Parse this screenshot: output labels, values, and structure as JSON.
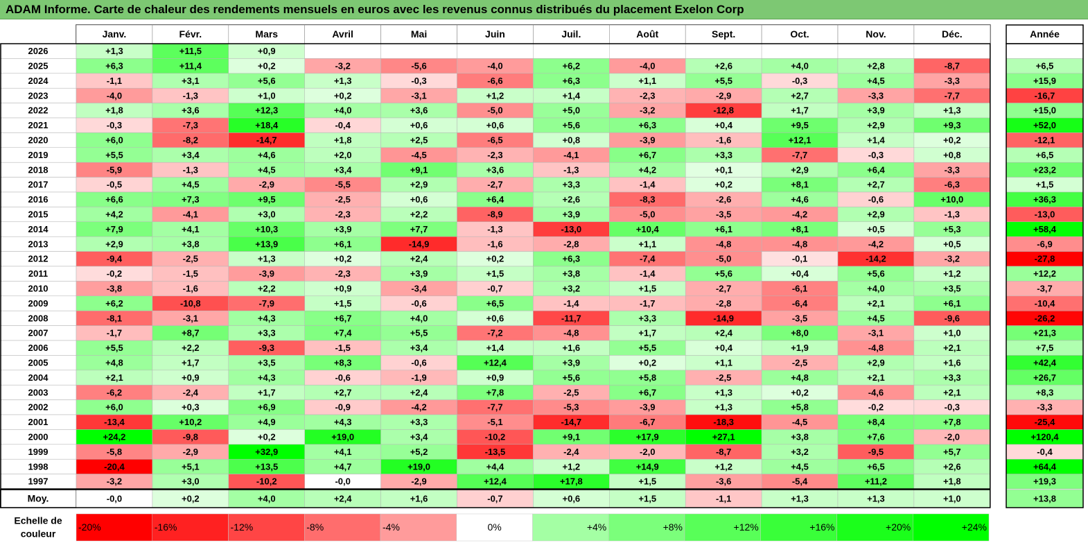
{
  "title": "ADAM Informe. Carte de chaleur des rendements mensuels en euros avec les revenus connus distribués du placement Exelon Corp",
  "chart_data": {
    "type": "heatmap",
    "title": "ADAM Informe. Carte de chaleur des rendements mensuels en euros avec les revenus connus distribués du placement Exelon Corp",
    "columns": [
      "Janv.",
      "Févr.",
      "Mars",
      "Avril",
      "Mai",
      "Juin",
      "Juil.",
      "Août",
      "Sept.",
      "Oct.",
      "Nov.",
      "Déc."
    ],
    "annual_label": "Année",
    "rows": [
      {
        "year": "2026",
        "months": [
          "+1,3",
          "+11,5",
          "+0,9",
          null,
          null,
          null,
          null,
          null,
          null,
          null,
          null,
          null
        ],
        "annual": null
      },
      {
        "year": "2025",
        "months": [
          "+6,3",
          "+11,4",
          "+0,2",
          "-3,2",
          "-5,6",
          "-4,0",
          "+6,2",
          "-4,0",
          "+2,6",
          "+4,0",
          "+2,8",
          "-8,7"
        ],
        "annual": "+6,5"
      },
      {
        "year": "2024",
        "months": [
          "-1,1",
          "+3,1",
          "+5,6",
          "+1,3",
          "-0,3",
          "-6,6",
          "+6,3",
          "+1,1",
          "+5,5",
          "-0,3",
          "+4,5",
          "-3,3"
        ],
        "annual": "+15,9"
      },
      {
        "year": "2023",
        "months": [
          "-4,0",
          "-1,3",
          "+1,0",
          "+0,2",
          "-3,1",
          "+1,2",
          "+1,4",
          "-2,3",
          "-2,9",
          "+2,7",
          "-3,3",
          "-7,7"
        ],
        "annual": "-16,7"
      },
      {
        "year": "2022",
        "months": [
          "+1,8",
          "+3,6",
          "+12,3",
          "+4,0",
          "+3,6",
          "-5,0",
          "+5,0",
          "-3,2",
          "-12,8",
          "+1,7",
          "+3,9",
          "+1,3"
        ],
        "annual": "+15,0"
      },
      {
        "year": "2021",
        "months": [
          "-0,3",
          "-7,3",
          "+18,4",
          "-0,4",
          "+0,6",
          "+0,6",
          "+5,6",
          "+6,3",
          "+0,4",
          "+9,5",
          "+2,9",
          "+9,3"
        ],
        "annual": "+52,0"
      },
      {
        "year": "2020",
        "months": [
          "+6,0",
          "-8,2",
          "-14,7",
          "+1,8",
          "+2,5",
          "-6,5",
          "+0,8",
          "-3,9",
          "-1,6",
          "+12,1",
          "+1,4",
          "+0,2"
        ],
        "annual": "-12,1"
      },
      {
        "year": "2019",
        "months": [
          "+5,5",
          "+3,4",
          "+4,6",
          "+2,0",
          "-4,5",
          "-2,3",
          "-4,1",
          "+6,7",
          "+3,3",
          "-7,7",
          "-0,3",
          "+0,8"
        ],
        "annual": "+6,5"
      },
      {
        "year": "2018",
        "months": [
          "-5,9",
          "-1,3",
          "+4,5",
          "+3,4",
          "+9,1",
          "+3,6",
          "-1,3",
          "+4,2",
          "+0,1",
          "+2,9",
          "+6,4",
          "-3,3"
        ],
        "annual": "+23,2"
      },
      {
        "year": "2017",
        "months": [
          "-0,5",
          "+4,5",
          "-2,9",
          "-5,5",
          "+2,9",
          "-2,7",
          "+3,3",
          "-1,4",
          "+0,2",
          "+8,1",
          "+2,7",
          "-6,3"
        ],
        "annual": "+1,5"
      },
      {
        "year": "2016",
        "months": [
          "+6,6",
          "+7,3",
          "+9,5",
          "-2,5",
          "+0,6",
          "+6,4",
          "+2,6",
          "-8,3",
          "-2,6",
          "+4,6",
          "-0,6",
          "+10,0"
        ],
        "annual": "+36,3"
      },
      {
        "year": "2015",
        "months": [
          "+4,2",
          "-4,1",
          "+3,0",
          "-2,3",
          "+2,2",
          "-8,9",
          "+3,9",
          "-5,0",
          "-3,5",
          "-4,2",
          "+2,9",
          "-1,3"
        ],
        "annual": "-13,0"
      },
      {
        "year": "2014",
        "months": [
          "+7,9",
          "+4,1",
          "+10,3",
          "+3,9",
          "+7,7",
          "-1,3",
          "-13,0",
          "+10,4",
          "+6,1",
          "+8,1",
          "+0,5",
          "+5,3"
        ],
        "annual": "+58,4"
      },
      {
        "year": "2013",
        "months": [
          "+2,9",
          "+3,8",
          "+13,9",
          "+6,1",
          "-14,9",
          "-1,6",
          "-2,8",
          "+1,1",
          "-4,8",
          "-4,8",
          "-4,2",
          "+0,5"
        ],
        "annual": "-6,9"
      },
      {
        "year": "2012",
        "months": [
          "-9,4",
          "-2,5",
          "+1,3",
          "+0,2",
          "+2,4",
          "+0,2",
          "+6,3",
          "-7,4",
          "-5,0",
          "-0,1",
          "-14,2",
          "-3,2"
        ],
        "annual": "-27,8"
      },
      {
        "year": "2011",
        "months": [
          "-0,2",
          "-1,5",
          "-3,9",
          "-2,3",
          "+3,9",
          "+1,5",
          "+3,8",
          "-1,4",
          "+5,6",
          "+0,4",
          "+5,6",
          "+1,2"
        ],
        "annual": "+12,2"
      },
      {
        "year": "2010",
        "months": [
          "-3,8",
          "-1,6",
          "+2,2",
          "+0,9",
          "-3,4",
          "-0,7",
          "+3,2",
          "+1,5",
          "-2,7",
          "-6,1",
          "+4,0",
          "+3,5"
        ],
        "annual": "-3,7"
      },
      {
        "year": "2009",
        "months": [
          "+6,2",
          "-10,8",
          "-7,9",
          "+1,5",
          "-0,6",
          "+6,5",
          "-1,4",
          "-1,7",
          "-2,8",
          "-6,4",
          "+2,1",
          "+6,1"
        ],
        "annual": "-10,4"
      },
      {
        "year": "2008",
        "months": [
          "-8,1",
          "-3,1",
          "+4,3",
          "+6,7",
          "+4,0",
          "+0,6",
          "-11,7",
          "+3,3",
          "-14,9",
          "-3,5",
          "+4,5",
          "-9,6"
        ],
        "annual": "-26,2"
      },
      {
        "year": "2007",
        "months": [
          "-1,7",
          "+8,7",
          "+3,3",
          "+7,4",
          "+5,5",
          "-7,2",
          "-4,8",
          "+1,7",
          "+2,4",
          "+8,0",
          "-3,1",
          "+1,0"
        ],
        "annual": "+21,3"
      },
      {
        "year": "2006",
        "months": [
          "+5,5",
          "+2,2",
          "-9,3",
          "-1,5",
          "+3,4",
          "+1,4",
          "+1,6",
          "+5,5",
          "+0,4",
          "+1,9",
          "-4,8",
          "+2,1"
        ],
        "annual": "+7,5"
      },
      {
        "year": "2005",
        "months": [
          "+4,8",
          "+1,7",
          "+3,5",
          "+8,3",
          "-0,6",
          "+12,4",
          "+3,9",
          "+0,2",
          "+1,1",
          "-2,5",
          "+2,9",
          "+1,6"
        ],
        "annual": "+42,4"
      },
      {
        "year": "2004",
        "months": [
          "+2,1",
          "+0,9",
          "+4,3",
          "-0,6",
          "-1,9",
          "+0,9",
          "+5,6",
          "+5,8",
          "-2,5",
          "+4,8",
          "+2,1",
          "+3,3"
        ],
        "annual": "+26,7"
      },
      {
        "year": "2003",
        "months": [
          "-6,2",
          "-2,4",
          "+1,7",
          "+2,7",
          "+2,4",
          "+7,8",
          "-2,5",
          "+6,7",
          "+1,3",
          "+0,2",
          "-4,6",
          "+2,1"
        ],
        "annual": "+8,3"
      },
      {
        "year": "2002",
        "months": [
          "+6,0",
          "+0,3",
          "+6,9",
          "-0,9",
          "-4,2",
          "-7,7",
          "-5,3",
          "-3,9",
          "+1,3",
          "+5,8",
          "-0,2",
          "-0,3"
        ],
        "annual": "-3,3"
      },
      {
        "year": "2001",
        "months": [
          "-13,4",
          "+10,2",
          "+4,9",
          "+4,3",
          "+3,3",
          "-5,1",
          "-14,7",
          "-6,7",
          "-18,3",
          "-4,5",
          "+8,4",
          "+7,8"
        ],
        "annual": "-25,4"
      },
      {
        "year": "2000",
        "months": [
          "+24,2",
          "-9,8",
          "+0,2",
          "+19,0",
          "+3,4",
          "-10,2",
          "+9,1",
          "+17,9",
          "+27,1",
          "+3,8",
          "+7,6",
          "-2,0"
        ],
        "annual": "+120,4"
      },
      {
        "year": "1999",
        "months": [
          "-5,8",
          "-2,9",
          "+32,9",
          "+4,1",
          "+5,2",
          "-13,5",
          "-2,4",
          "-2,0",
          "-8,7",
          "+3,2",
          "-9,5",
          "+5,7"
        ],
        "annual": "-0,4"
      },
      {
        "year": "1998",
        "months": [
          "-20,4",
          "+5,1",
          "+13,5",
          "+4,7",
          "+19,0",
          "+4,4",
          "+1,2",
          "+14,9",
          "+1,2",
          "+4,5",
          "+6,5",
          "+2,6"
        ],
        "annual": "+64,4"
      },
      {
        "year": "1997",
        "months": [
          "-3,2",
          "+3,0",
          "-10,2",
          "-0,0",
          "-2,9",
          "+12,4",
          "+17,8",
          "+1,5",
          "-3,6",
          "-5,4",
          "+11,2",
          "+1,8"
        ],
        "annual": "+19,3"
      }
    ],
    "average": {
      "label": "Moy.",
      "months": [
        "-0,0",
        "+0,2",
        "+4,0",
        "+2,4",
        "+1,6",
        "-0,7",
        "+0,6",
        "+1,5",
        "-1,1",
        "+1,3",
        "+1,3",
        "+1,0"
      ],
      "annual": "+13,8"
    },
    "color_scale": {
      "label_line1": "Echelle de",
      "label_line2": "couleur",
      "stops": [
        "-20%",
        "-16%",
        "-12%",
        "-8%",
        "-4%",
        "0%",
        "+4%",
        "+8%",
        "+12%",
        "+16%",
        "+20%",
        "+24%"
      ]
    },
    "colors": {
      "negative_max": "#ff0000",
      "neutral": "#ffffff",
      "positive_max": "#00ff00",
      "title_bg": "#7dc873"
    }
  }
}
